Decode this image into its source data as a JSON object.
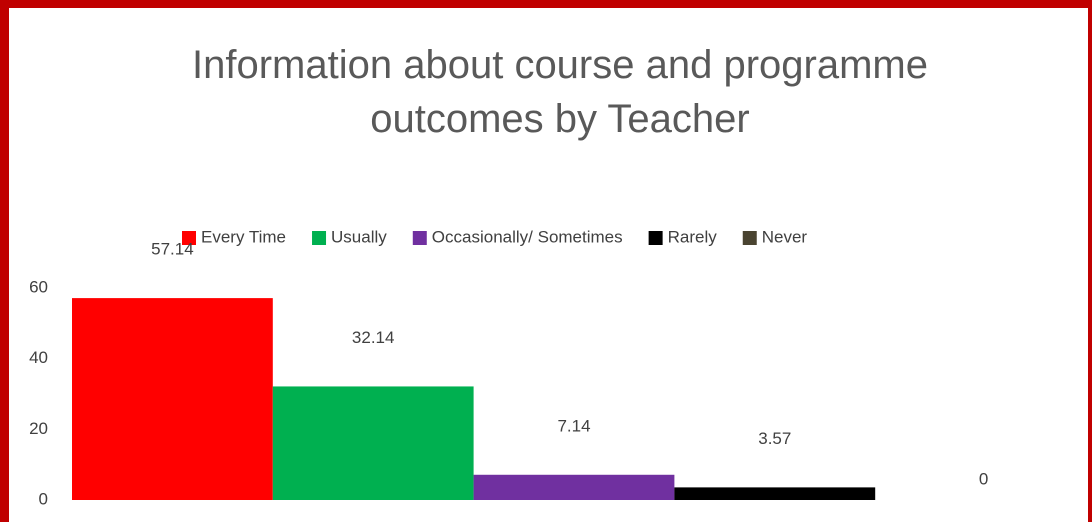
{
  "chart_data": {
    "type": "bar",
    "title": "Information about course and programme outcomes by Teacher",
    "categories": [
      null
    ],
    "series": [
      {
        "name": "Every Time",
        "color": "#ff0000",
        "values": [
          57.14
        ]
      },
      {
        "name": "Usually",
        "color": "#00b050",
        "values": [
          32.14
        ]
      },
      {
        "name": "Occasionally/ Sometimes",
        "color": "#7030a0",
        "values": [
          7.14
        ]
      },
      {
        "name": "Rarely",
        "color": "#000000",
        "values": [
          3.57
        ]
      },
      {
        "name": "Never",
        "color": "#4a4431",
        "values": [
          0
        ]
      }
    ],
    "ylim": [
      0,
      60
    ],
    "yticks": [
      0,
      20,
      40,
      60
    ],
    "grid": false,
    "legend": "top"
  }
}
